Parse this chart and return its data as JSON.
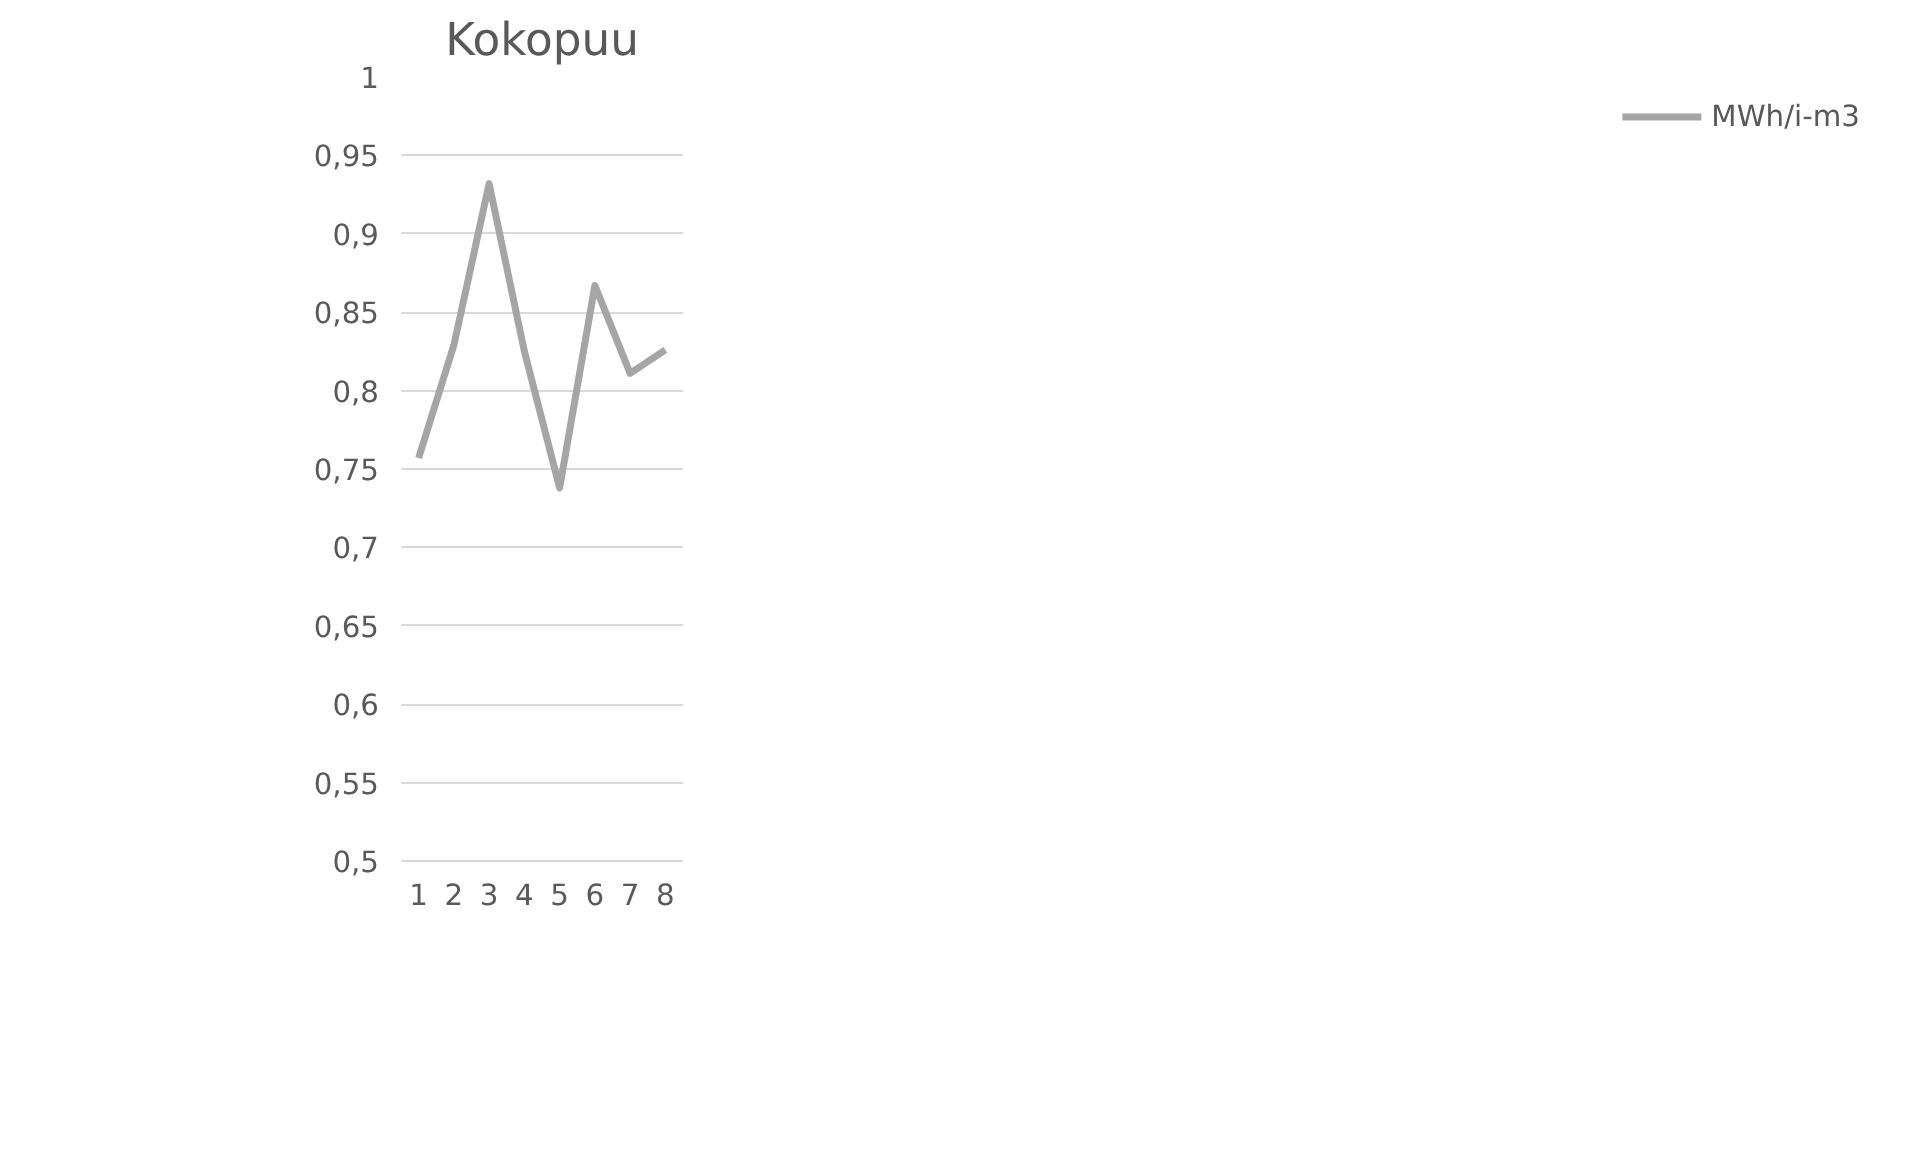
{
  "chart_data": {
    "type": "line",
    "title": "Kokopuu",
    "categories": [
      "1",
      "2",
      "3",
      "4",
      "5",
      "6",
      "7",
      "8"
    ],
    "series": [
      {
        "name": "MWh/i-m3",
        "color": "#a5a5a5",
        "values": [
          0.757,
          0.829,
          0.932,
          0.825,
          0.738,
          0.867,
          0.811,
          0.826
        ]
      }
    ],
    "ylim": [
      0.5,
      1
    ],
    "yticks": [
      {
        "value": 0.5,
        "label": "0,5"
      },
      {
        "value": 0.55,
        "label": "0,55"
      },
      {
        "value": 0.6,
        "label": "0,6"
      },
      {
        "value": 0.65,
        "label": "0,65"
      },
      {
        "value": 0.7,
        "label": "0,7"
      },
      {
        "value": 0.75,
        "label": "0,75"
      },
      {
        "value": 0.8,
        "label": "0,8"
      },
      {
        "value": 0.85,
        "label": "0,85"
      },
      {
        "value": 0.9,
        "label": "0,9"
      },
      {
        "value": 0.95,
        "label": "0,95"
      },
      {
        "value": 1,
        "label": "1"
      }
    ],
    "grid": "y",
    "legend": "right",
    "marker": "none",
    "line_style": "solid"
  }
}
